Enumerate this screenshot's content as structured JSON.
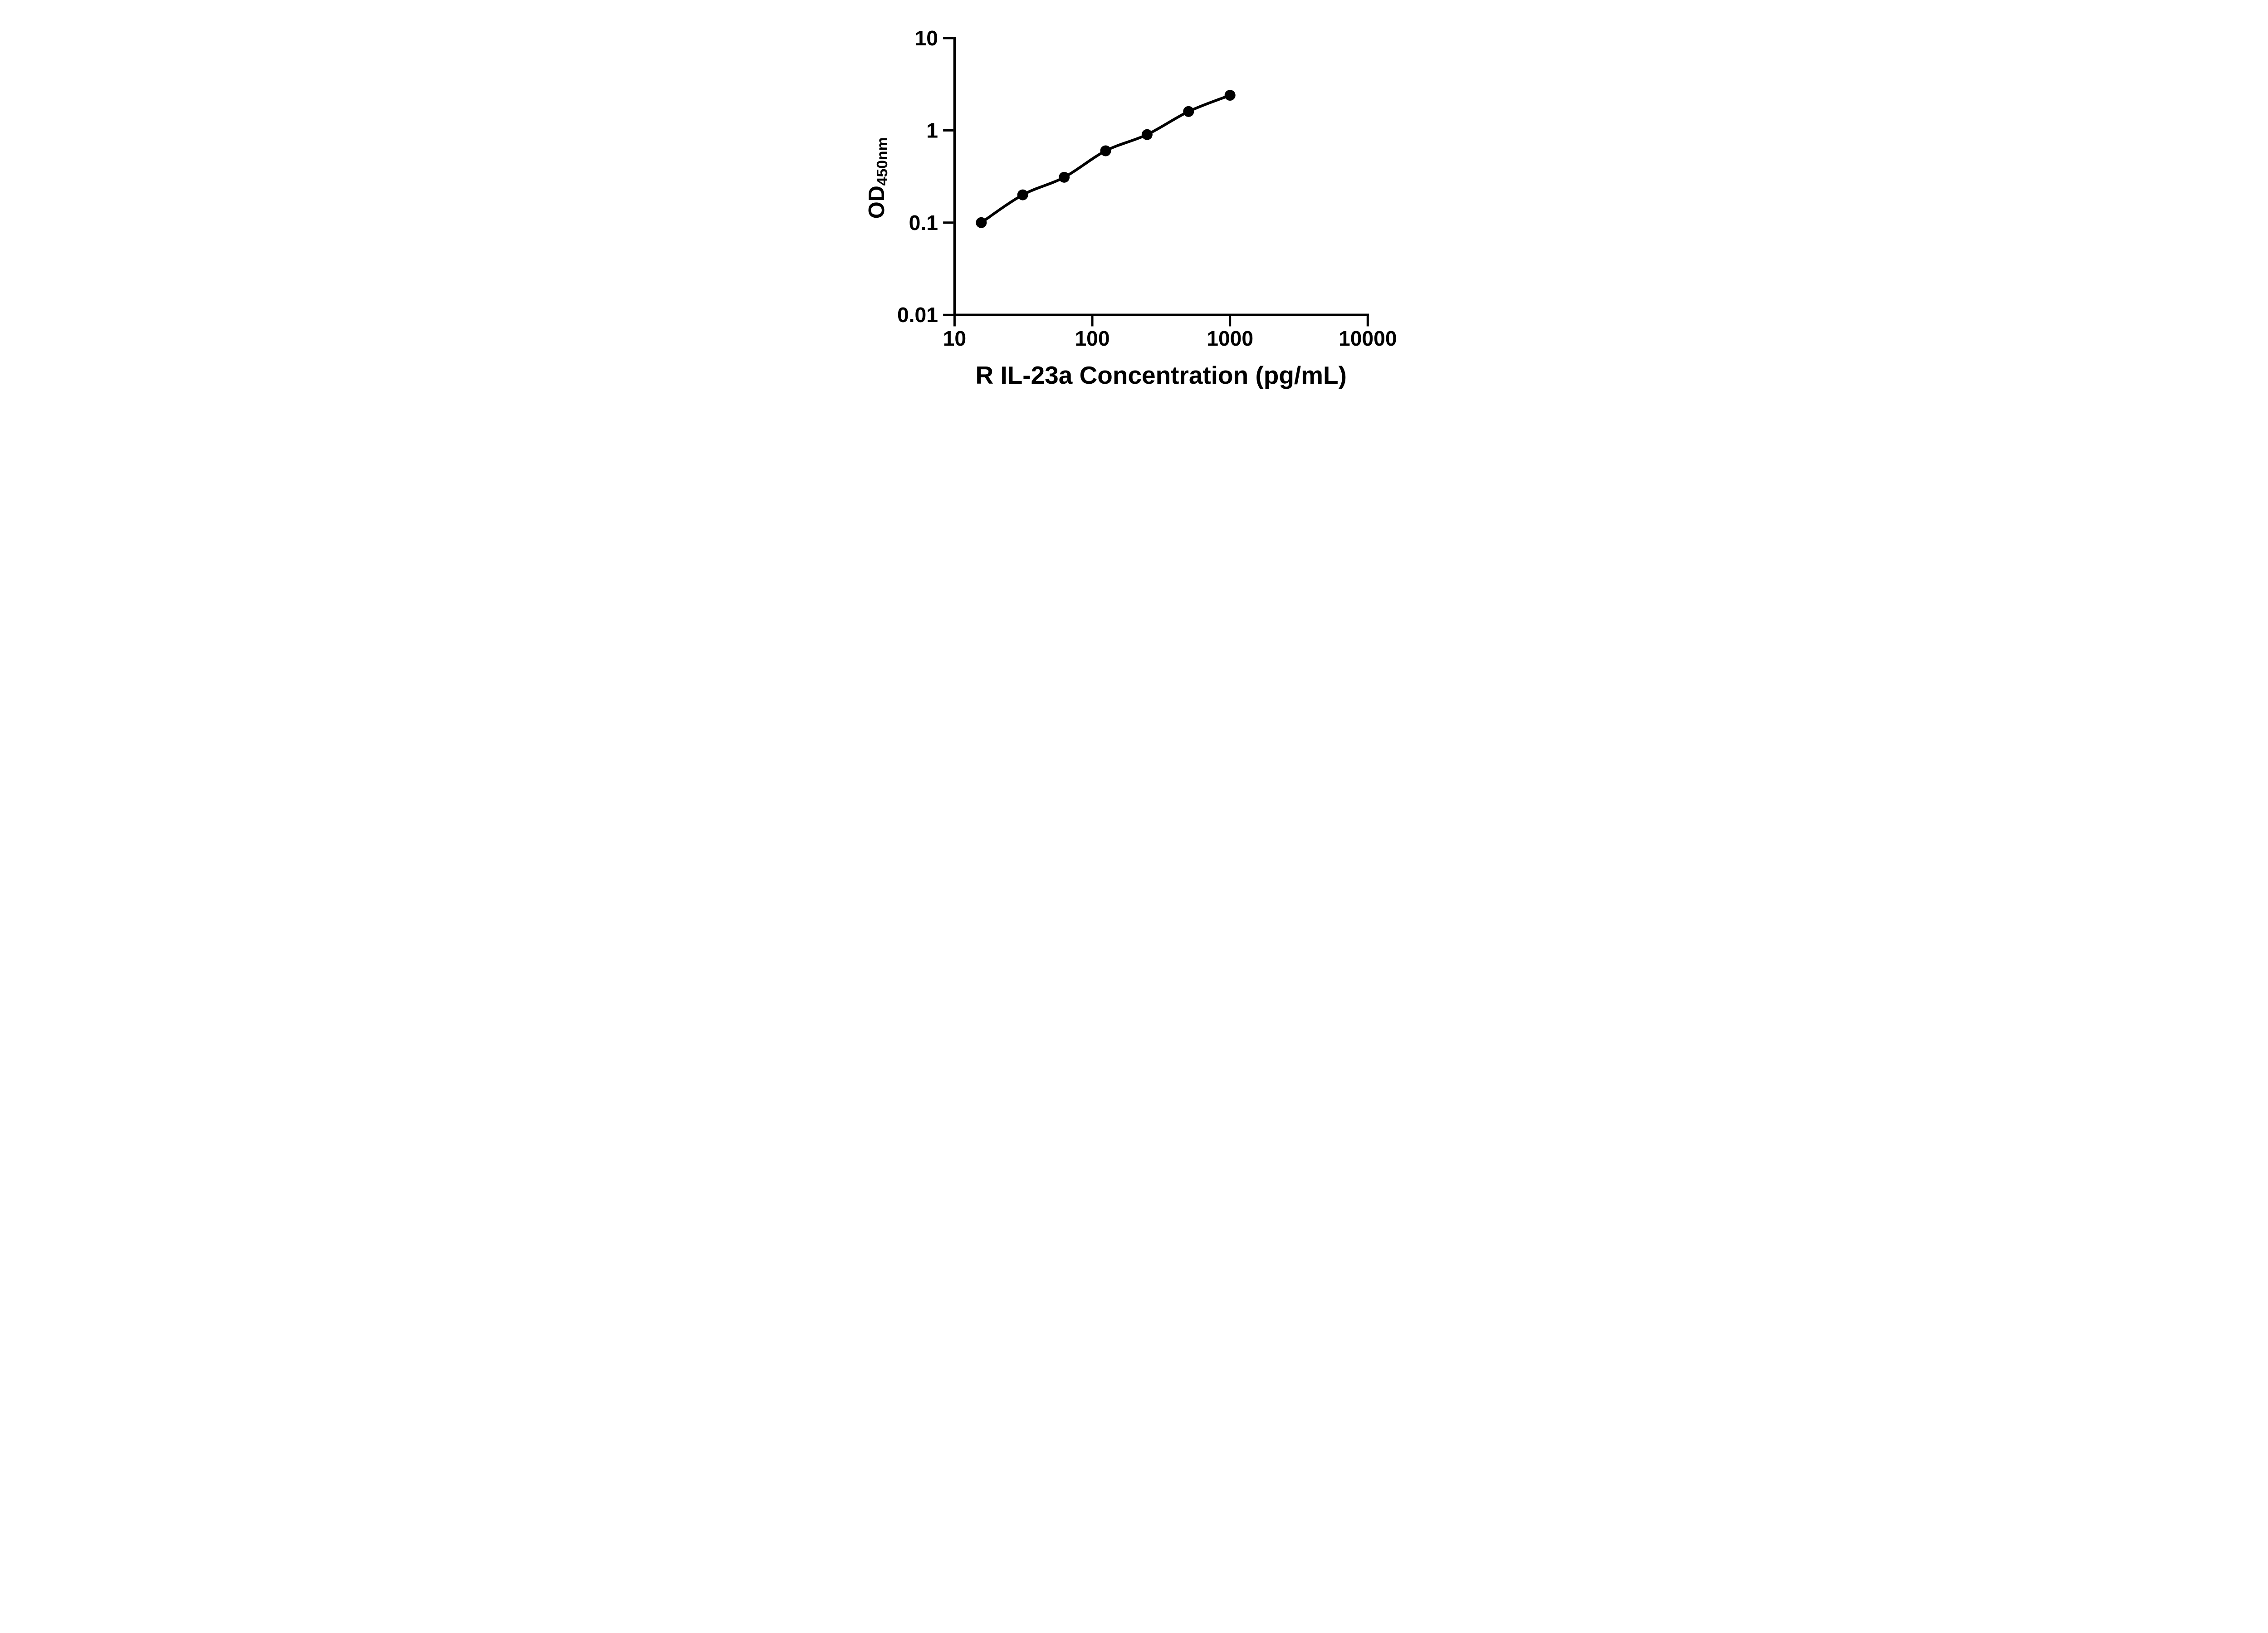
{
  "figure": {
    "background": "#ffffff",
    "ink_color": "#000000"
  },
  "chart_data": {
    "type": "scatter",
    "subtype": "elisa-standard-curve",
    "title": "",
    "xlabel": "R IL-23a Concentration (pg/mL)",
    "ylabel": "OD450nm",
    "ylabel_main": "OD",
    "ylabel_sub": "450nm",
    "x_scale": "log10",
    "y_scale": "log10",
    "xlim": [
      10,
      10000
    ],
    "ylim": [
      0.01,
      10
    ],
    "x_ticks": [
      10,
      100,
      1000,
      10000
    ],
    "x_tick_labels": [
      "10",
      "100",
      "1000",
      "10000"
    ],
    "y_ticks": [
      10,
      1,
      0.1,
      0.01
    ],
    "y_tick_labels": [
      "10",
      "1",
      "0.1",
      "0.01"
    ],
    "grid": false,
    "legend": null,
    "series": [
      {
        "name": "standard-curve",
        "marker": "filled-circle",
        "line": "smooth",
        "color": "#000000",
        "points": [
          {
            "x": 15.63,
            "y": 0.1
          },
          {
            "x": 31.25,
            "y": 0.2
          },
          {
            "x": 62.5,
            "y": 0.31
          },
          {
            "x": 125,
            "y": 0.6
          },
          {
            "x": 250,
            "y": 0.9
          },
          {
            "x": 500,
            "y": 1.6
          },
          {
            "x": 1000,
            "y": 2.4
          }
        ]
      }
    ]
  }
}
